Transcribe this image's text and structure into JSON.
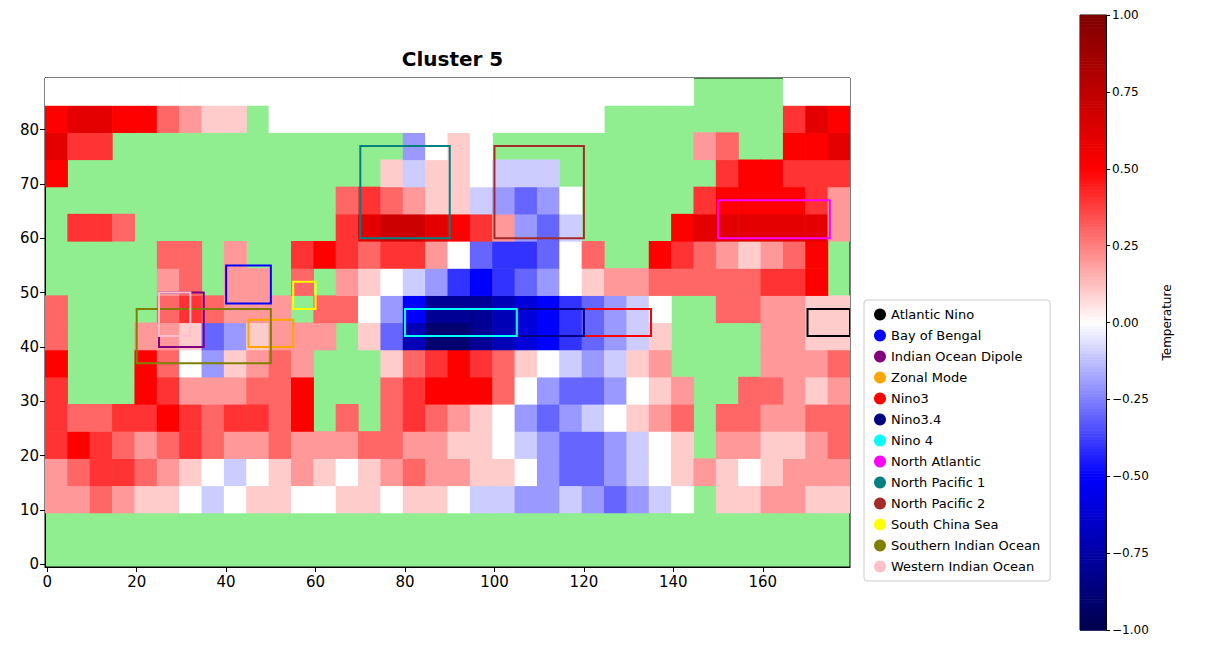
{
  "chart_data": {
    "type": "heatmap",
    "title": "Cluster 5",
    "x": [
      2,
      7,
      12,
      17,
      22,
      27,
      32,
      37,
      42,
      47,
      52,
      57,
      62,
      67,
      72,
      77,
      82,
      87,
      92,
      97,
      102,
      107,
      112,
      117,
      122,
      127,
      132,
      137,
      142,
      147,
      152,
      157,
      162,
      167,
      172,
      177
    ],
    "y": [
      2,
      7,
      12,
      17,
      22,
      27,
      32,
      37,
      42,
      47,
      52,
      57,
      62,
      67,
      72,
      77,
      82,
      87
    ],
    "z": [
      [
        null,
        null,
        null,
        null,
        null,
        null,
        null,
        null,
        null,
        null,
        null,
        null,
        null,
        null,
        null,
        null,
        null,
        null,
        null,
        null,
        null,
        null,
        null,
        null,
        null,
        null,
        null,
        null,
        null,
        null,
        null,
        null,
        null,
        null,
        null,
        null
      ],
      [
        null,
        null,
        null,
        null,
        null,
        null,
        null,
        null,
        null,
        null,
        null,
        null,
        null,
        null,
        null,
        null,
        null,
        null,
        null,
        null,
        null,
        null,
        null,
        null,
        null,
        null,
        null,
        null,
        null,
        null,
        null,
        null,
        null,
        null,
        null,
        null
      ],
      [
        0.2,
        0.2,
        0.3,
        0.2,
        0.1,
        0.1,
        0,
        -0.1,
        0,
        0.1,
        0.1,
        0,
        0,
        0.1,
        0.1,
        0,
        0.1,
        0.1,
        0,
        -0.1,
        -0.1,
        -0.2,
        -0.2,
        -0.1,
        -0.2,
        -0.3,
        -0.2,
        -0.1,
        0,
        null,
        0.1,
        0.1,
        0.2,
        0.2,
        0.1,
        0.1
      ],
      [
        0.2,
        0.3,
        0.4,
        0.4,
        0.3,
        0.2,
        0.1,
        0,
        -0.1,
        0,
        0.1,
        0.2,
        0.1,
        0,
        0.1,
        0.2,
        0.3,
        0.2,
        0.2,
        0.1,
        0.1,
        0,
        -0.2,
        -0.3,
        -0.3,
        -0.2,
        -0.1,
        0,
        0.1,
        0.2,
        0.1,
        0,
        0.1,
        0.2,
        0.2,
        0.2
      ],
      [
        0.4,
        0.5,
        0.4,
        0.3,
        0.2,
        0.3,
        0.4,
        0.3,
        0.2,
        0.2,
        0.3,
        0.2,
        0.2,
        0.2,
        0.3,
        0.3,
        0.2,
        0.2,
        0.1,
        0.1,
        0,
        -0.1,
        -0.2,
        -0.3,
        -0.3,
        -0.2,
        -0.1,
        0,
        0.1,
        null,
        0.2,
        0.2,
        0.1,
        0.1,
        0.2,
        0.3
      ],
      [
        0.4,
        0.3,
        0.3,
        0.4,
        0.4,
        0.5,
        0.4,
        0.3,
        0.4,
        0.4,
        0.3,
        0.5,
        null,
        0.3,
        null,
        0.3,
        0.4,
        0.3,
        0.2,
        0.1,
        0,
        -0.2,
        -0.3,
        -0.2,
        -0.1,
        0,
        0.1,
        0.2,
        0.3,
        null,
        0.3,
        0.3,
        0.2,
        0.2,
        0.3,
        0.3
      ],
      [
        0.4,
        null,
        null,
        null,
        0.5,
        0.4,
        0.2,
        0.2,
        0.2,
        0.3,
        0.3,
        0.5,
        null,
        null,
        null,
        0.3,
        0.4,
        0.5,
        0.5,
        0.5,
        0.3,
        0,
        -0.2,
        -0.3,
        -0.3,
        -0.2,
        0,
        0.1,
        0.2,
        null,
        null,
        0.3,
        0.3,
        0.2,
        0.1,
        0.2
      ],
      [
        0.5,
        null,
        null,
        null,
        0.5,
        0.3,
        0,
        -0.2,
        0.1,
        0.2,
        0.3,
        0.2,
        null,
        null,
        null,
        0.1,
        0.3,
        0.4,
        0.5,
        0.4,
        0.3,
        0.1,
        0,
        -0.1,
        -0.2,
        -0.1,
        0.1,
        0.2,
        null,
        null,
        null,
        null,
        0.2,
        0.2,
        0.2,
        0.3
      ],
      [
        0.3,
        null,
        null,
        null,
        0.2,
        0.2,
        0.1,
        -0.3,
        -0.2,
        0.1,
        0.2,
        0.2,
        0.2,
        null,
        0.1,
        -0.3,
        -0.7,
        -0.9,
        -0.9,
        -0.8,
        -0.7,
        -0.6,
        -0.5,
        -0.4,
        -0.3,
        -0.2,
        -0.1,
        0.1,
        null,
        null,
        null,
        null,
        0.2,
        0.2,
        0.1,
        0.1
      ],
      [
        0.3,
        null,
        null,
        null,
        null,
        0.3,
        0.4,
        0.3,
        0.2,
        0.2,
        0.2,
        null,
        0.3,
        0.3,
        0,
        -0.2,
        -0.5,
        -0.8,
        -0.8,
        -0.8,
        -0.7,
        -0.6,
        -0.5,
        -0.4,
        -0.3,
        -0.2,
        -0.1,
        0,
        null,
        null,
        0.3,
        0.3,
        0.2,
        0.2,
        0.1,
        0.1
      ],
      [
        null,
        null,
        null,
        null,
        null,
        0.2,
        0.3,
        null,
        0.2,
        0.2,
        null,
        0.3,
        null,
        0.2,
        0.1,
        0,
        -0.1,
        -0.2,
        -0.4,
        -0.5,
        -0.4,
        -0.3,
        -0.2,
        0,
        0.1,
        0.2,
        0.2,
        0.3,
        0.3,
        0.3,
        0.3,
        0.3,
        0.4,
        0.4,
        0.5,
        null
      ],
      [
        null,
        null,
        null,
        null,
        null,
        0.3,
        0.3,
        null,
        0.2,
        null,
        null,
        0.4,
        0.5,
        0.4,
        0.3,
        0.4,
        0.4,
        0.2,
        0,
        -0.3,
        -0.4,
        -0.4,
        -0.3,
        0,
        0.3,
        null,
        null,
        0.5,
        0.4,
        0.3,
        0.2,
        0.1,
        0.2,
        0.3,
        0.5,
        null
      ],
      [
        null,
        0.4,
        0.4,
        0.3,
        null,
        null,
        null,
        null,
        null,
        null,
        null,
        null,
        null,
        0.4,
        0.6,
        0.7,
        0.7,
        0.6,
        0.5,
        0.4,
        0.2,
        -0.2,
        -0.3,
        -0.1,
        null,
        null,
        null,
        null,
        0.5,
        0.6,
        0.6,
        0.6,
        0.6,
        0.6,
        0.6,
        0.2
      ],
      [
        null,
        null,
        null,
        null,
        null,
        null,
        null,
        null,
        null,
        null,
        null,
        null,
        null,
        0.3,
        0.4,
        0.3,
        0.2,
        0.1,
        0.1,
        -0.1,
        -0.2,
        -0.3,
        -0.2,
        0,
        null,
        null,
        null,
        null,
        null,
        0.4,
        0.5,
        0.5,
        0.5,
        0.5,
        0.4,
        0.2
      ],
      [
        0.5,
        null,
        null,
        null,
        null,
        null,
        null,
        null,
        null,
        null,
        null,
        null,
        null,
        null,
        null,
        0.1,
        -0.1,
        0.1,
        0.1,
        0,
        -0.1,
        -0.1,
        -0.1,
        null,
        null,
        null,
        null,
        null,
        null,
        null,
        0.4,
        0.5,
        0.5,
        0.4,
        0.4,
        0.4
      ],
      [
        0.6,
        0.4,
        0.4,
        null,
        null,
        null,
        null,
        null,
        null,
        null,
        null,
        null,
        null,
        null,
        null,
        null,
        -0.2,
        0,
        0.1,
        0,
        null,
        null,
        null,
        null,
        null,
        null,
        null,
        null,
        null,
        0.2,
        0.3,
        null,
        null,
        0.5,
        0.5,
        0.6
      ],
      [
        0.5,
        0.6,
        0.6,
        0.5,
        0.5,
        0.3,
        0.2,
        0.1,
        0.1,
        null,
        0,
        0,
        0,
        0,
        0,
        0,
        0,
        0,
        0,
        0,
        0,
        0,
        0,
        0,
        0,
        null,
        null,
        null,
        null,
        null,
        null,
        null,
        null,
        0.4,
        0.6,
        0.5
      ],
      [
        0,
        0,
        0,
        0,
        0,
        0,
        0,
        0,
        0,
        0,
        0,
        0,
        0,
        0,
        0,
        0,
        0,
        0,
        0,
        0,
        0,
        0,
        0,
        0,
        0,
        0,
        0,
        0,
        0,
        null,
        null,
        null,
        null,
        0,
        0,
        0
      ]
    ],
    "xlim": [
      -0.5,
      179.5
    ],
    "ylim": [
      -0.5,
      89.5
    ],
    "xticks": [
      0,
      20,
      40,
      60,
      80,
      100,
      120,
      140,
      160
    ],
    "yticks": [
      0,
      10,
      20,
      30,
      40,
      50,
      60,
      70,
      80
    ],
    "grid": false,
    "legend": "right",
    "colorbar_label": "Temperature",
    "colorbar_range": [
      -1,
      1
    ],
    "colorbar_ticks": [
      {
        "value": -1,
        "label": "−1.00"
      },
      {
        "value": -0.75,
        "label": "−0.75"
      },
      {
        "value": -0.5,
        "label": "−0.50"
      },
      {
        "value": -0.25,
        "label": "−0.25"
      },
      {
        "value": 0,
        "label": "0.00"
      },
      {
        "value": 0.25,
        "label": "0.25"
      },
      {
        "value": 0.5,
        "label": "0.50"
      },
      {
        "value": 0.75,
        "label": "0.75"
      },
      {
        "value": 1,
        "label": "1.00"
      }
    ],
    "regions": [
      {
        "name": "Atlantic Nino",
        "color": "black",
        "x": [
          170,
          180
        ],
        "y": [
          42,
          47
        ]
      },
      {
        "name": "Bay of Bengal",
        "color": "blue",
        "x": [
          40,
          50
        ],
        "y": [
          48,
          55
        ]
      },
      {
        "name": "Indian Ocean Dipole",
        "color": "purple",
        "x": [
          25,
          35
        ],
        "y": [
          40,
          50
        ]
      },
      {
        "name": "Zonal Mode",
        "color": "orange",
        "x": [
          45,
          55
        ],
        "y": [
          40,
          45
        ]
      },
      {
        "name": "Nino3",
        "color": "red",
        "x": [
          105,
          135
        ],
        "y": [
          42,
          47
        ]
      },
      {
        "name": "Nino3.4",
        "color": "navy",
        "x": [
          95,
          120
        ],
        "y": [
          42,
          47
        ]
      },
      {
        "name": "Nino 4",
        "color": "cyan",
        "x": [
          80,
          105
        ],
        "y": [
          42,
          47
        ]
      },
      {
        "name": "North Atlantic",
        "color": "magenta",
        "x": [
          150,
          175
        ],
        "y": [
          60,
          67
        ]
      },
      {
        "name": "North Pacific 1",
        "color": "teal",
        "x": [
          70,
          90
        ],
        "y": [
          60,
          77
        ]
      },
      {
        "name": "North Pacific 2",
        "color": "brown",
        "x": [
          100,
          120
        ],
        "y": [
          60,
          77
        ]
      },
      {
        "name": "South China Sea",
        "color": "yellow",
        "x": [
          55,
          60
        ],
        "y": [
          47,
          52
        ]
      },
      {
        "name": "Southern Indian Ocean",
        "color": "olive",
        "x": [
          20,
          50
        ],
        "y": [
          37,
          47
        ]
      },
      {
        "name": "Western Indian Ocean",
        "color": "pink",
        "x": [
          25,
          32
        ],
        "y": [
          42,
          50
        ]
      }
    ]
  }
}
